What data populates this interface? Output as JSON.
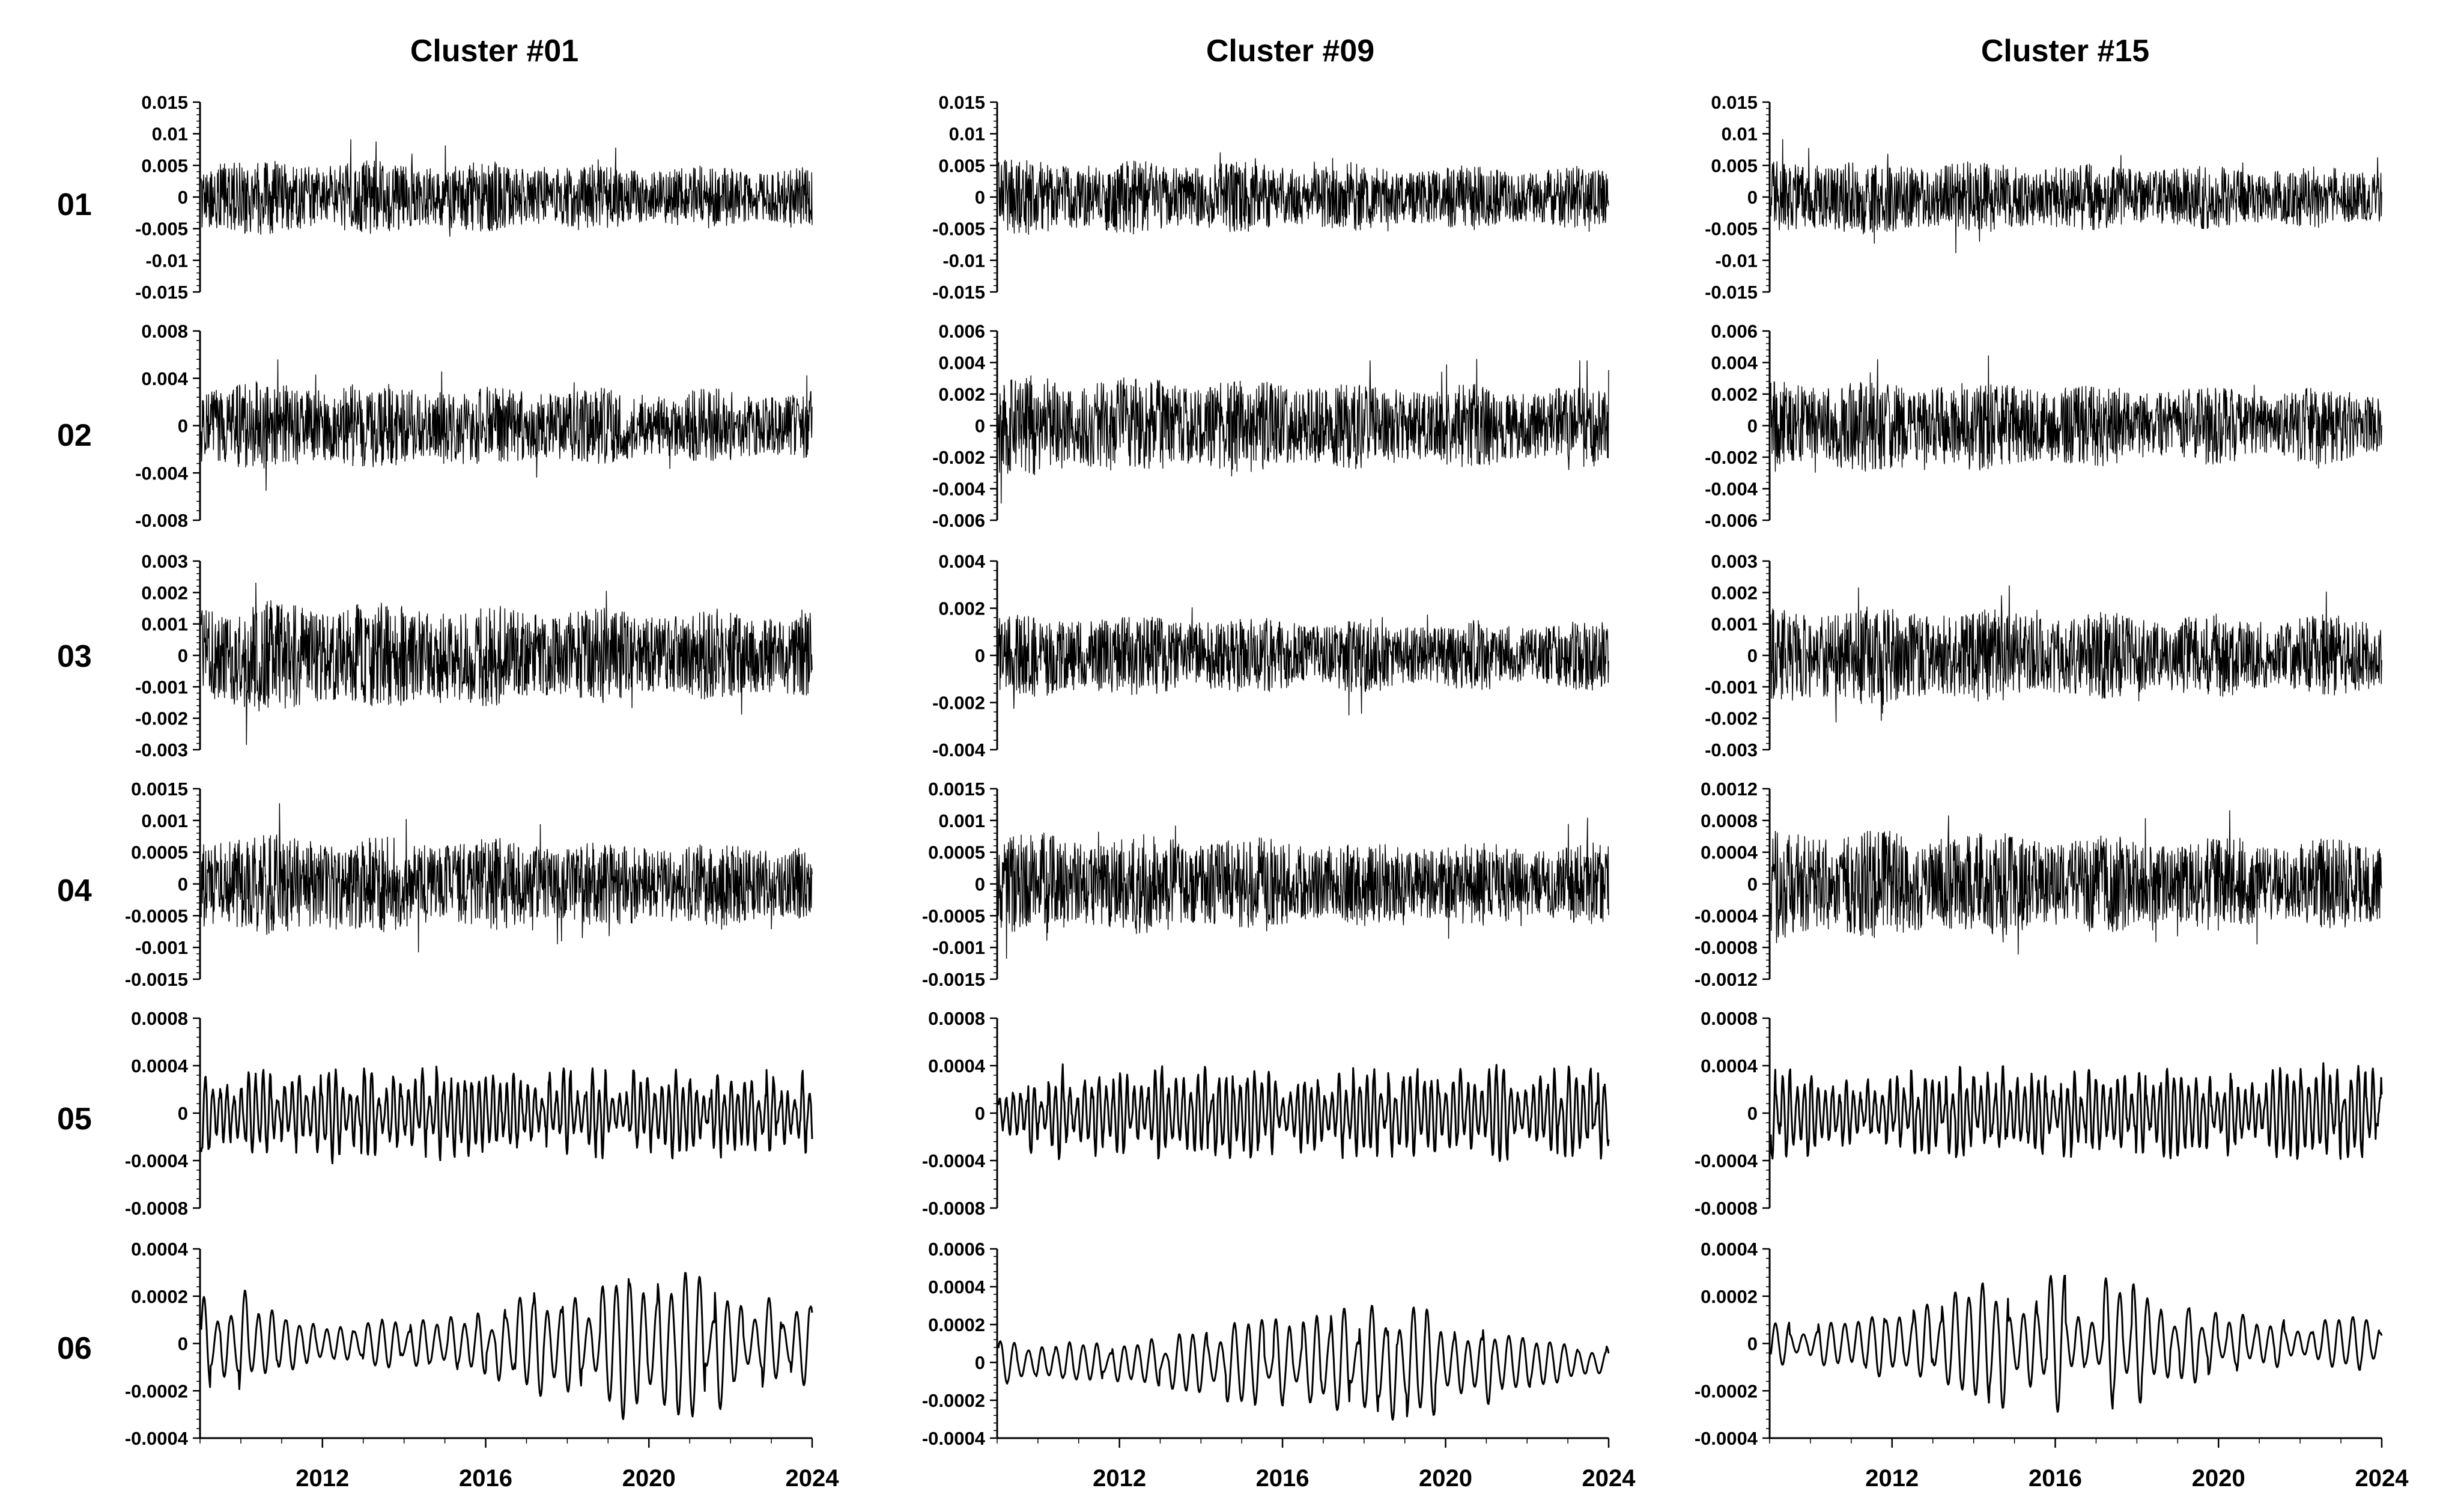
{
  "columns": [
    "Cluster #01",
    "Cluster #09",
    "Cluster #15"
  ],
  "rows": [
    "01",
    "02",
    "03",
    "04",
    "05",
    "06"
  ],
  "colors": {
    "line": "#000000",
    "axis": "#000000",
    "background": "#ffffff"
  },
  "chart_data": {
    "type": "line",
    "x_range": [
      2009,
      2024
    ],
    "x_ticks": [
      2012,
      2016,
      2020,
      2024
    ],
    "x_tick_labels": [
      "2012",
      "2016",
      "2020",
      "2024"
    ],
    "grid": false,
    "panels": [
      {
        "column": "Cluster #01",
        "row": "01",
        "ylim": [
          -0.015,
          0.015
        ],
        "y_ticks": [
          0.015,
          0.01,
          0.005,
          0,
          -0.005,
          -0.01,
          -0.015
        ],
        "y_tick_labels": [
          "0.015",
          "0.01",
          "0.005",
          "0",
          "-0.005",
          "-0.01",
          "-0.015"
        ],
        "amplitude": 0.006,
        "kind": "noise"
      },
      {
        "column": "Cluster #09",
        "row": "01",
        "ylim": [
          -0.015,
          0.015
        ],
        "y_ticks": [
          0.015,
          0.01,
          0.005,
          0,
          -0.005,
          -0.01,
          -0.015
        ],
        "y_tick_labels": [
          "0.015",
          "0.01",
          "0.005",
          "0",
          "-0.005",
          "-0.01",
          "-0.015"
        ],
        "amplitude": 0.006,
        "kind": "noise"
      },
      {
        "column": "Cluster #15",
        "row": "01",
        "ylim": [
          -0.015,
          0.015
        ],
        "y_ticks": [
          0.015,
          0.01,
          0.005,
          0,
          -0.005,
          -0.01,
          -0.015
        ],
        "y_tick_labels": [
          "0.015",
          "0.01",
          "0.005",
          "0",
          "-0.005",
          "-0.01",
          "-0.015"
        ],
        "amplitude": 0.006,
        "kind": "noise"
      },
      {
        "column": "Cluster #01",
        "row": "02",
        "ylim": [
          -0.008,
          0.008
        ],
        "y_ticks": [
          0.008,
          0.004,
          0,
          -0.004,
          -0.008
        ],
        "y_tick_labels": [
          "0.008",
          "0.004",
          "0",
          "-0.004",
          "-0.008"
        ],
        "amplitude": 0.0038,
        "kind": "noise"
      },
      {
        "column": "Cluster #09",
        "row": "02",
        "ylim": [
          -0.006,
          0.006
        ],
        "y_ticks": [
          0.006,
          0.004,
          0.002,
          0,
          -0.002,
          -0.004,
          -0.006
        ],
        "y_tick_labels": [
          "0.006",
          "0.004",
          "0.002",
          "0",
          "-0.002",
          "-0.004",
          "-0.006"
        ],
        "amplitude": 0.0032,
        "kind": "noise"
      },
      {
        "column": "Cluster #15",
        "row": "02",
        "ylim": [
          -0.006,
          0.006
        ],
        "y_ticks": [
          0.006,
          0.004,
          0.002,
          0,
          -0.002,
          -0.004,
          -0.006
        ],
        "y_tick_labels": [
          "0.006",
          "0.004",
          "0.002",
          "0",
          "-0.002",
          "-0.004",
          "-0.006"
        ],
        "amplitude": 0.003,
        "kind": "noise"
      },
      {
        "column": "Cluster #01",
        "row": "03",
        "ylim": [
          -0.003,
          0.003
        ],
        "y_ticks": [
          0.003,
          0.002,
          0.001,
          0,
          -0.001,
          -0.002,
          -0.003
        ],
        "y_tick_labels": [
          "0.003",
          "0.002",
          "0.001",
          "0",
          "-0.001",
          "-0.002",
          "-0.003"
        ],
        "amplitude": 0.0018,
        "kind": "noise"
      },
      {
        "column": "Cluster #09",
        "row": "03",
        "ylim": [
          -0.004,
          0.004
        ],
        "y_ticks": [
          0.004,
          0.002,
          0,
          -0.002,
          -0.004
        ],
        "y_tick_labels": [
          "0.004",
          "0.002",
          "0",
          "-0.002",
          "-0.004"
        ],
        "amplitude": 0.0018,
        "kind": "noise"
      },
      {
        "column": "Cluster #15",
        "row": "03",
        "ylim": [
          -0.003,
          0.003
        ],
        "y_ticks": [
          0.003,
          0.002,
          0.001,
          0,
          -0.001,
          -0.002,
          -0.003
        ],
        "y_tick_labels": [
          "0.003",
          "0.002",
          "0.001",
          "0",
          "-0.001",
          "-0.002",
          "-0.003"
        ],
        "amplitude": 0.0016,
        "kind": "noise"
      },
      {
        "column": "Cluster #01",
        "row": "04",
        "ylim": [
          -0.0015,
          0.0015
        ],
        "y_ticks": [
          0.0015,
          0.001,
          0.0005,
          0,
          -0.0005,
          -0.001,
          -0.0015
        ],
        "y_tick_labels": [
          "0.0015",
          "0.001",
          "0.0005",
          "0",
          "-0.0005",
          "-0.001",
          "-0.0015"
        ],
        "amplitude": 0.0008,
        "kind": "noise"
      },
      {
        "column": "Cluster #09",
        "row": "04",
        "ylim": [
          -0.0015,
          0.0015
        ],
        "y_ticks": [
          0.0015,
          0.001,
          0.0005,
          0,
          -0.0005,
          -0.001,
          -0.0015
        ],
        "y_tick_labels": [
          "0.0015",
          "0.001",
          "0.0005",
          "0",
          "-0.0005",
          "-0.001",
          "-0.0015"
        ],
        "amplitude": 0.0008,
        "kind": "noise"
      },
      {
        "column": "Cluster #15",
        "row": "04",
        "ylim": [
          -0.0012,
          0.0012
        ],
        "y_ticks": [
          0.0012,
          0.0008,
          0.0004,
          0,
          -0.0004,
          -0.0008,
          -0.0012
        ],
        "y_tick_labels": [
          "0.0012",
          "0.0008",
          "0.0004",
          "0",
          "-0.0004",
          "-0.0008",
          "-0.0012"
        ],
        "amplitude": 0.0007,
        "kind": "noise"
      },
      {
        "column": "Cluster #01",
        "row": "05",
        "ylim": [
          -0.0008,
          0.0008
        ],
        "y_ticks": [
          0.0008,
          0.0004,
          0,
          -0.0004,
          -0.0008
        ],
        "y_tick_labels": [
          "0.0008",
          "0.0004",
          "0",
          "-0.0004",
          "-0.0008"
        ],
        "amplitude": 0.0004,
        "kind": "oscillation"
      },
      {
        "column": "Cluster #09",
        "row": "05",
        "ylim": [
          -0.0008,
          0.0008
        ],
        "y_ticks": [
          0.0008,
          0.0004,
          0,
          -0.0004,
          -0.0008
        ],
        "y_tick_labels": [
          "0.0008",
          "0.0004",
          "0",
          "-0.0004",
          "-0.0008"
        ],
        "amplitude": 0.0004,
        "kind": "oscillation"
      },
      {
        "column": "Cluster #15",
        "row": "05",
        "ylim": [
          -0.0008,
          0.0008
        ],
        "y_ticks": [
          0.0008,
          0.0004,
          0,
          -0.0004,
          -0.0008
        ],
        "y_tick_labels": [
          "0.0008",
          "0.0004",
          "0",
          "-0.0004",
          "-0.0008"
        ],
        "amplitude": 0.0004,
        "kind": "oscillation"
      },
      {
        "column": "Cluster #01",
        "row": "06",
        "ylim": [
          -0.0004,
          0.0004
        ],
        "y_ticks": [
          0.0004,
          0.0002,
          0,
          -0.0002,
          -0.0004
        ],
        "y_tick_labels": [
          "0.0004",
          "0.0002",
          "0",
          "-0.0002",
          "-0.0004"
        ],
        "amplitude": 0.00022,
        "kind": "smooth"
      },
      {
        "column": "Cluster #09",
        "row": "06",
        "ylim": [
          -0.0004,
          0.0006
        ],
        "y_ticks": [
          0.0006,
          0.0004,
          0.0002,
          0,
          -0.0002,
          -0.0004
        ],
        "y_tick_labels": [
          "0.0006",
          "0.0004",
          "0.0002",
          "0",
          "-0.0002",
          "-0.0004"
        ],
        "amplitude": 0.00022,
        "kind": "smooth"
      },
      {
        "column": "Cluster #15",
        "row": "06",
        "ylim": [
          -0.0004,
          0.0004
        ],
        "y_ticks": [
          0.0004,
          0.0002,
          0,
          -0.0002,
          -0.0004
        ],
        "y_tick_labels": [
          "0.0004",
          "0.0002",
          "0",
          "-0.0002",
          "-0.0004"
        ],
        "amplitude": 0.0002,
        "kind": "smooth"
      }
    ]
  }
}
